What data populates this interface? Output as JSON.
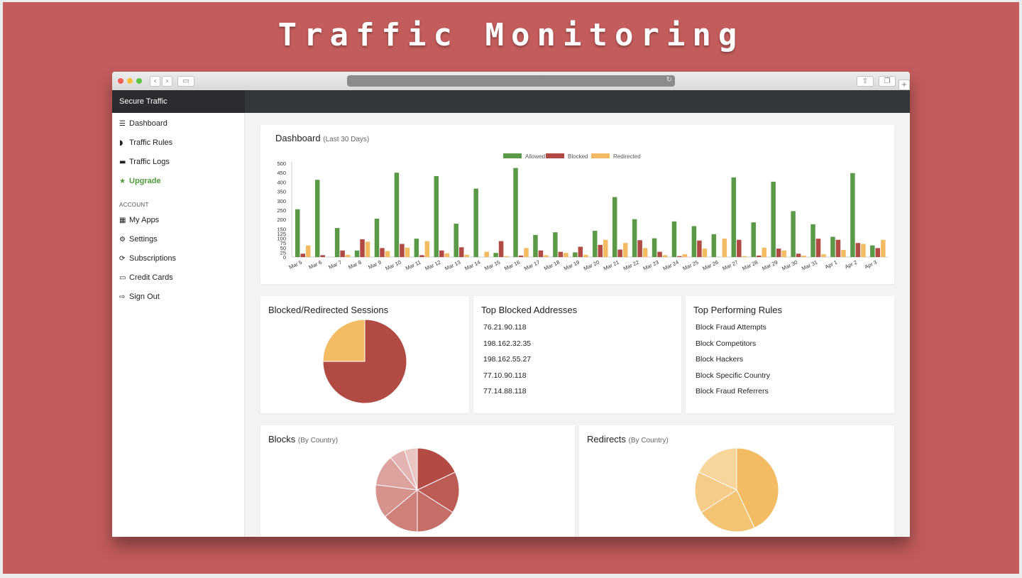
{
  "slide_title": "Traffic Monitoring",
  "app": {
    "brand": "Secure Traffic"
  },
  "nav": {
    "items": [
      {
        "label": "Dashboard",
        "icon": "menu-icon"
      },
      {
        "label": "Traffic Rules",
        "icon": "shield-icon"
      },
      {
        "label": "Traffic Logs",
        "icon": "archive-icon"
      },
      {
        "label": "Upgrade",
        "icon": "star-icon",
        "active": true
      }
    ],
    "account_label": "ACCOUNT",
    "account_items": [
      {
        "label": "My Apps",
        "icon": "grid-icon"
      },
      {
        "label": "Settings",
        "icon": "gear-icon"
      },
      {
        "label": "Subscriptions",
        "icon": "refresh-icon"
      },
      {
        "label": "Credit Cards",
        "icon": "credit-card-icon"
      },
      {
        "label": "Sign Out",
        "icon": "sign-out-icon"
      }
    ]
  },
  "dashboard": {
    "title": "Dashboard",
    "subtitle": "(Last 30 Days)"
  },
  "cards": {
    "sessions_title": "Blocked/Redirected Sessions",
    "addresses_title": "Top Blocked Addresses",
    "addresses": [
      "76.21.90.118",
      "198.162.32.35",
      "198.162.55.27",
      "77.10.90.118",
      "77.14.88.118"
    ],
    "rules_title": "Top Performing Rules",
    "rules": [
      "Block Fraud Attempts",
      "Block Competitors",
      "Block Hackers",
      "Block Specific Country",
      "Block Fraud Referrers"
    ],
    "blocks_title": "Blocks",
    "blocks_sub": "(By Country)",
    "redirects_title": "Redirects",
    "redirects_sub": "(By Country)"
  },
  "colors": {
    "allowed": "#5a9a47",
    "blocked": "#b04a43",
    "redirected": "#f3bb62",
    "slide_bg": "#c35c5c"
  },
  "chart_data": [
    {
      "type": "bar",
      "title": "",
      "categories": [
        "Mar 5",
        "Mar 6",
        "Mar 7",
        "Mar 8",
        "Mar 9",
        "Mar 10",
        "Mar 11",
        "Mar 12",
        "Mar 13",
        "Mar 14",
        "Mar 15",
        "Mar 16",
        "Mar 17",
        "Mar 18",
        "Mar 19",
        "Mar 20",
        "Mar 21",
        "Mar 22",
        "Mar 23",
        "Mar 24",
        "Mar 25",
        "Mar 26",
        "Mar 27",
        "Mar 28",
        "Mar 29",
        "Mar 30",
        "Mar 31",
        "Apr 1",
        "Apr 2",
        "Apr 3"
      ],
      "series": [
        {
          "name": "Allowed",
          "values": [
            255,
            412,
            155,
            35,
            205,
            450,
            98,
            432,
            178,
            365,
            22,
            475,
            118,
            132,
            25,
            140,
            320,
            202,
            100,
            190,
            165,
            122,
            425,
            185,
            402,
            245,
            175,
            108,
            448,
            62
          ]
        },
        {
          "name": "Blocked",
          "values": [
            18,
            10,
            35,
            95,
            48,
            70,
            10,
            35,
            52,
            0,
            85,
            8,
            35,
            28,
            55,
            65,
            40,
            90,
            28,
            5,
            88,
            0,
            92,
            8,
            45,
            18,
            98,
            92,
            75,
            48
          ]
        },
        {
          "name": "Redirected",
          "values": [
            62,
            0,
            12,
            82,
            32,
            50,
            85,
            20,
            12,
            28,
            5,
            48,
            10,
            22,
            12,
            92,
            75,
            48,
            10,
            15,
            45,
            98,
            5,
            50,
            35,
            8,
            15,
            38,
            70,
            92
          ]
        }
      ],
      "ylim": [
        0,
        500
      ],
      "yticks": [
        0,
        25,
        50,
        75,
        100,
        125,
        150,
        200,
        250,
        300,
        350,
        400,
        450,
        500
      ],
      "legend": "top-center"
    },
    {
      "type": "pie",
      "title": "Blocked/Redirected Sessions",
      "labels": [
        "Blocked",
        "Redirected"
      ],
      "values": [
        75,
        25
      ]
    },
    {
      "type": "pie",
      "title": "Blocks (By Country)",
      "values": [
        18,
        16,
        16,
        14,
        13,
        12,
        6,
        5
      ]
    },
    {
      "type": "pie",
      "title": "Redirects (By Country)",
      "values": [
        43,
        23,
        16,
        18
      ]
    }
  ]
}
